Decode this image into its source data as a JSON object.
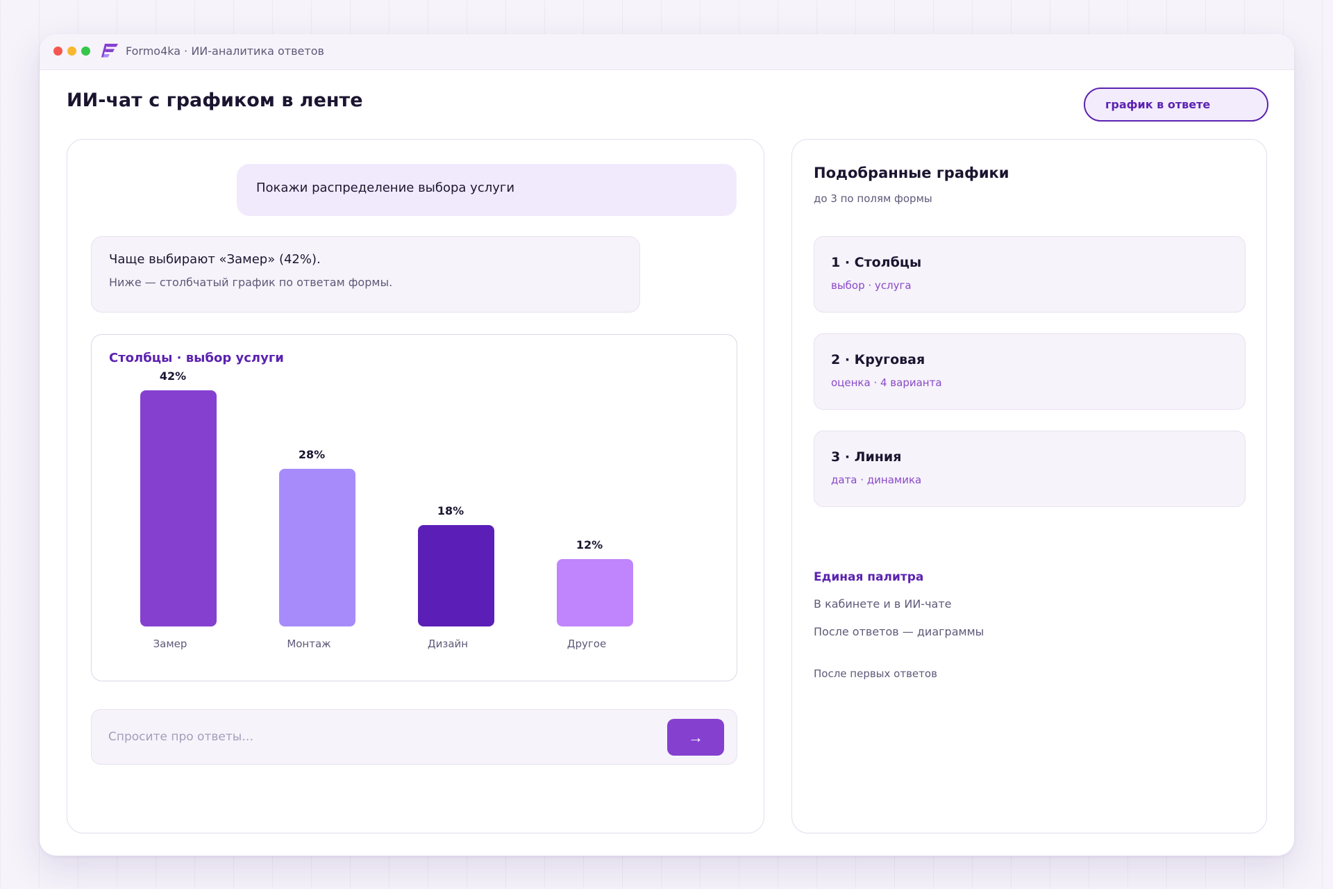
{
  "app": {
    "title": "Formo4ka · ИИ-аналитика ответов"
  },
  "page": {
    "title": "ИИ-чат с графиком в ленте",
    "pill": "график в ответе"
  },
  "chat": {
    "user_message": "Покажи распределение выбора услуги",
    "ai_line1": "Чаще выбирают «Замер» (42%).",
    "ai_line2": "Ниже — столбчатый график по ответам формы.",
    "input_placeholder": "Спросите про ответы…",
    "send_label": "→"
  },
  "chart_data": {
    "type": "bar",
    "title": "Столбцы · выбор услуги",
    "categories": [
      "Замер",
      "Монтаж",
      "Дизайн",
      "Другое"
    ],
    "values": [
      42,
      28,
      18,
      12
    ],
    "value_labels": [
      "42%",
      "28%",
      "18%",
      "12%"
    ],
    "colors": [
      "#8540d0",
      "#a78bfa",
      "#5b1fb8",
      "#c084fc"
    ],
    "ylim": [
      0,
      42
    ]
  },
  "sidebar": {
    "title": "Подобранные графики",
    "subtitle": "до 3 по полям формы",
    "cards": [
      {
        "title": "1 · Столбцы",
        "sub": "выбор · услуга"
      },
      {
        "title": "2 · Круговая",
        "sub": "оценка · 4 варианта"
      },
      {
        "title": "3 · Линия",
        "sub": "дата · динамика"
      }
    ],
    "palette_title": "Единая палитра",
    "palette_line1": "В кабинете и в ИИ-чате",
    "palette_line2": "После ответов — диаграммы",
    "palette_note": "После первых ответов"
  },
  "colors": {
    "accent": "#5b22b0",
    "accent_bright": "#8540d0"
  }
}
